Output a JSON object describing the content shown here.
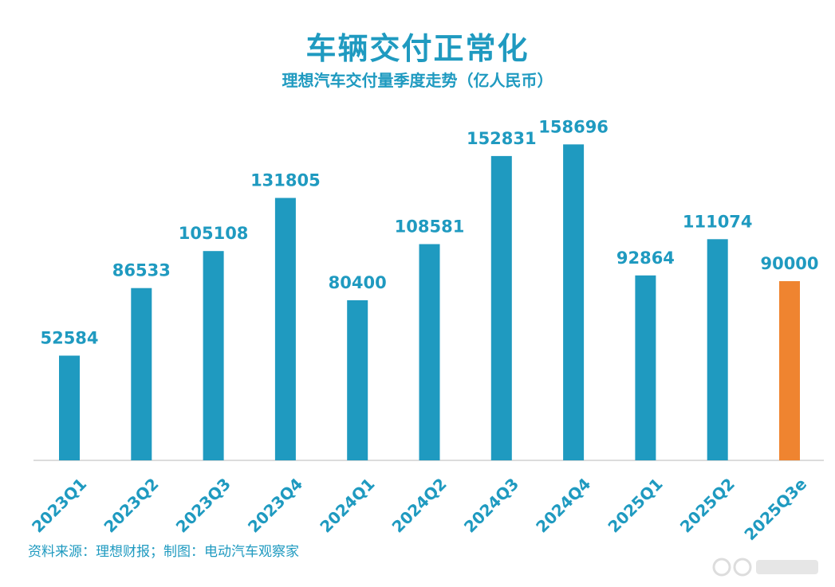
{
  "chart_data": {
    "type": "bar",
    "title": "车辆交付正常化",
    "subtitle": "理想汽车交付量季度走势（亿人民币）",
    "categories": [
      "2023Q1",
      "2023Q2",
      "2023Q3",
      "2023Q4",
      "2024Q1",
      "2024Q2",
      "2024Q3",
      "2024Q4",
      "2025Q1",
      "2025Q2",
      "2025Q3e"
    ],
    "values": [
      52584,
      86533,
      105108,
      131805,
      80400,
      108581,
      152831,
      158696,
      92864,
      111074,
      90000
    ],
    "ylim": [
      0,
      170000
    ],
    "grid": false,
    "legend": "none",
    "colors": {
      "default": "#1f9ac0",
      "highlight": "#ef8430",
      "axis": "#d0d0d0"
    },
    "highlight_categories": [
      "2025Q3e"
    ]
  },
  "footer": {
    "source": "资料来源：理想财报；制图：电动汽车观察家"
  },
  "watermark": {
    "icon": "watermark-logo-icon"
  }
}
